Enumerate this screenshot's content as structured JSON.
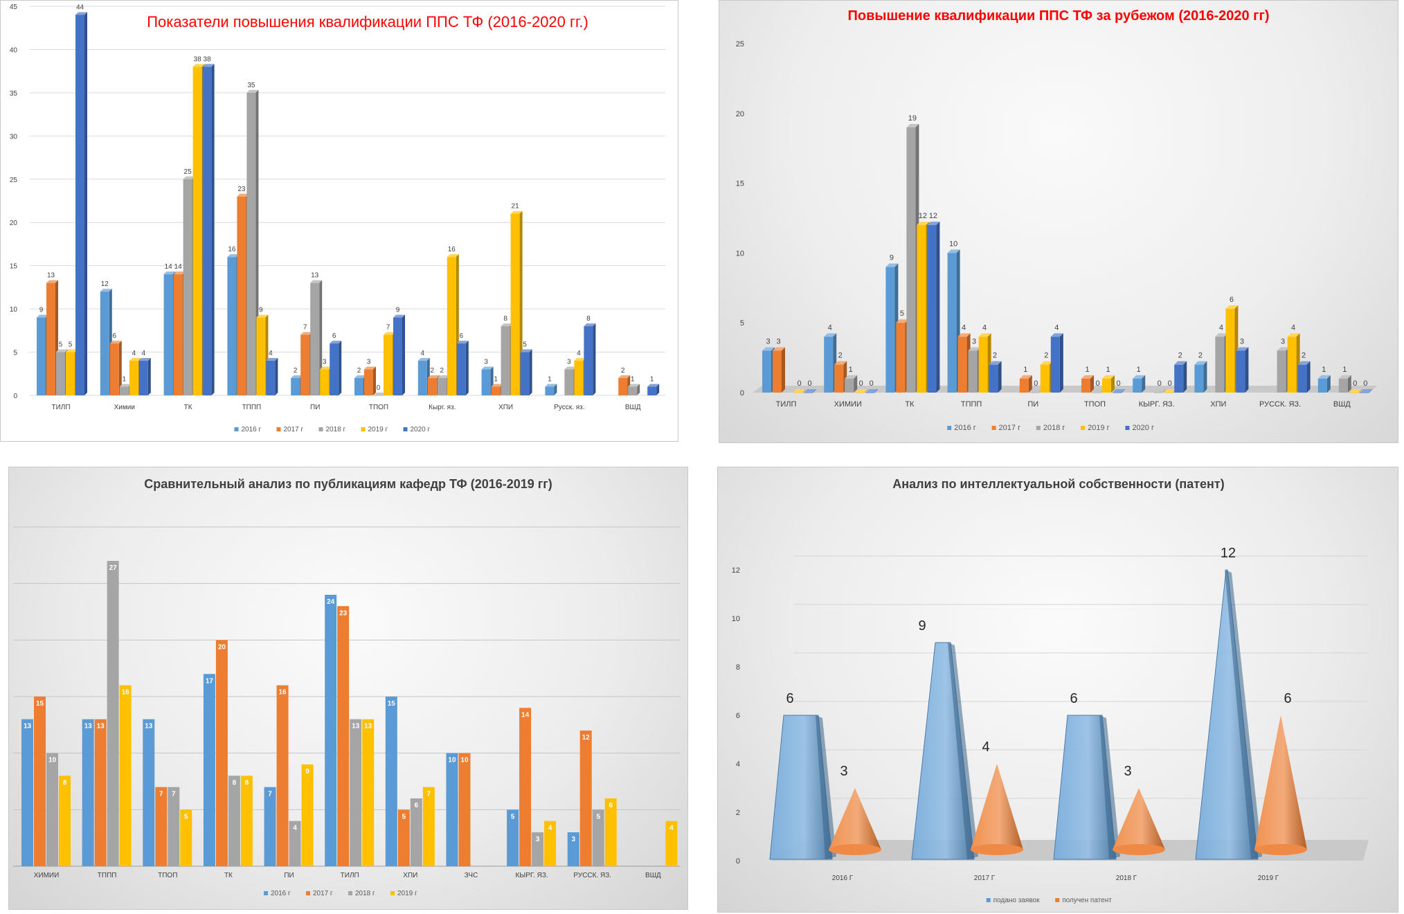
{
  "chart_data": [
    {
      "id": "qualification",
      "type": "bar",
      "title": "Показатели повышения квалификации ППС ТФ   (2016-2020 гг.)",
      "categories": [
        "ТИЛП",
        "Химии",
        "ТК",
        "ТППП",
        "ПИ",
        "ТПОП",
        "Кырг. яз.",
        "ХПИ",
        "Русск. яз.",
        "ВШД"
      ],
      "series": [
        {
          "name": "2016 г",
          "color": "#5b9bd5",
          "values": [
            9,
            12,
            14,
            16,
            2,
            2,
            4,
            3,
            1,
            null
          ]
        },
        {
          "name": "2017 г",
          "color": "#ed7d31",
          "values": [
            13,
            6,
            14,
            23,
            7,
            3,
            2,
            1,
            null,
            2
          ]
        },
        {
          "name": "2018 г",
          "color": "#a5a5a5",
          "values": [
            5,
            1,
            25,
            35,
            13,
            0,
            2,
            8,
            3,
            1
          ]
        },
        {
          "name": "2019 г",
          "color": "#ffc000",
          "values": [
            5,
            4,
            38,
            9,
            3,
            7,
            16,
            21,
            4,
            null
          ]
        },
        {
          "name": "2020 г",
          "color": "#4472c4",
          "values": [
            44,
            4,
            38,
            4,
            6,
            9,
            6,
            5,
            8,
            1
          ]
        }
      ],
      "ylim": [
        0,
        45
      ],
      "yticks": [
        0,
        5,
        10,
        15,
        20,
        25,
        30,
        35,
        40,
        45
      ],
      "grid": true,
      "legend": "bottom"
    },
    {
      "id": "abroad",
      "type": "bar",
      "title": "Повышение  квалификации ППС ТФ за рубежом (2016-2020 гг)",
      "categories": [
        "ТИЛП",
        "ХИМИИ",
        "ТК",
        "ТППП",
        "ПИ",
        "ТПОП",
        "КЫРГ. ЯЗ.",
        "ХПИ",
        "РУССК. ЯЗ.",
        "ВШД"
      ],
      "series": [
        {
          "name": "2016 г",
          "color": "#5b9bd5",
          "values": [
            3,
            4,
            9,
            10,
            null,
            null,
            1,
            2,
            null,
            1
          ]
        },
        {
          "name": "2017 г",
          "color": "#ed7d31",
          "values": [
            3,
            2,
            5,
            4,
            1,
            1,
            null,
            null,
            null,
            null
          ]
        },
        {
          "name": "2018 г",
          "color": "#a5a5a5",
          "values": [
            null,
            1,
            19,
            3,
            0,
            0,
            0,
            4,
            3,
            1
          ]
        },
        {
          "name": "2019 г",
          "color": "#ffc000",
          "values": [
            0,
            0,
            12,
            4,
            2,
            1,
            0,
            6,
            4,
            0
          ]
        },
        {
          "name": "2020 г",
          "color": "#4472c4",
          "values": [
            0,
            0,
            12,
            2,
            4,
            0,
            2,
            3,
            2,
            0
          ]
        }
      ],
      "ylim": [
        0,
        25
      ],
      "yticks": [
        0,
        5,
        10,
        15,
        20,
        25
      ],
      "grid": false,
      "legend": "bottom"
    },
    {
      "id": "publications",
      "type": "bar",
      "title": "Сравнительный анализ по публикациям  кафедр ТФ (2016-2019 гг)",
      "categories": [
        "ХИМИИ",
        "ТППП",
        "ТПОП",
        "ТК",
        "ПИ",
        "ТИЛП",
        "ХПИ",
        "ЗЧС",
        "КЫРГ. ЯЗ.",
        "РУССК. ЯЗ.",
        "ВШД"
      ],
      "series": [
        {
          "name": "2016 г",
          "color": "#5b9bd5",
          "values": [
            13,
            13,
            13,
            17,
            7,
            24,
            15,
            10,
            5,
            3,
            null
          ]
        },
        {
          "name": "2017 г",
          "color": "#ed7d31",
          "values": [
            15,
            13,
            7,
            20,
            16,
            23,
            5,
            10,
            14,
            12,
            null
          ]
        },
        {
          "name": "2018 г",
          "color": "#a5a5a5",
          "values": [
            10,
            27,
            7,
            8,
            4,
            13,
            6,
            null,
            3,
            5,
            null
          ]
        },
        {
          "name": "2019 г",
          "color": "#ffc000",
          "values": [
            8,
            16,
            5,
            8,
            9,
            13,
            7,
            null,
            4,
            6,
            4
          ]
        }
      ],
      "ylim": [
        0,
        30
      ],
      "grid": true,
      "legend": "bottom"
    },
    {
      "id": "patents",
      "type": "bar",
      "title": "Анализ по интеллектуальной собственности (патент)",
      "categories": [
        "2016 Г",
        "2017 Г",
        "2018 Г",
        "2019 Г"
      ],
      "series": [
        {
          "name": "подано заявок",
          "color": "#5b9bd5",
          "values": [
            6,
            9,
            6,
            12
          ]
        },
        {
          "name": "получен патент",
          "color": "#ed7d31",
          "values": [
            3,
            4,
            3,
            6
          ]
        }
      ],
      "ylim": [
        0,
        12
      ],
      "yticks": [
        0,
        2,
        4,
        6,
        8,
        10,
        12
      ],
      "legend": "bottom"
    }
  ]
}
